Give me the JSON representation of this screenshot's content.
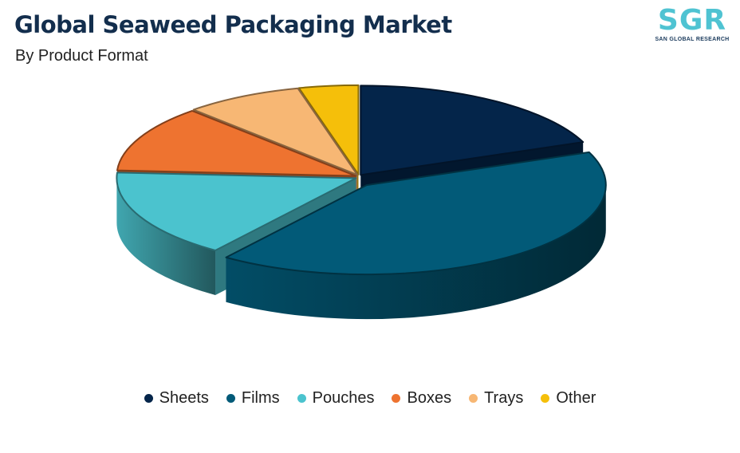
{
  "header": {
    "title": "Global Seaweed Packaging Market",
    "subtitle": "By Product Format"
  },
  "logo": {
    "mark": "SGR",
    "text": "SAN GLOBAL RESEARCH"
  },
  "chart_data": {
    "type": "pie",
    "title": "Global Seaweed Packaging Market",
    "subtitle": "By Product Format",
    "categories": [
      "Sheets",
      "Films",
      "Pouches",
      "Boxes",
      "Trays",
      "Other"
    ],
    "values": [
      19,
      41,
      16,
      12,
      8,
      4
    ],
    "unit": "%",
    "colors": [
      "#04254a",
      "#025a78",
      "#4bc3ce",
      "#ee7330",
      "#f7b774",
      "#f5bf0a"
    ],
    "exploded": "Films",
    "style": "3d",
    "legend_position": "bottom"
  }
}
